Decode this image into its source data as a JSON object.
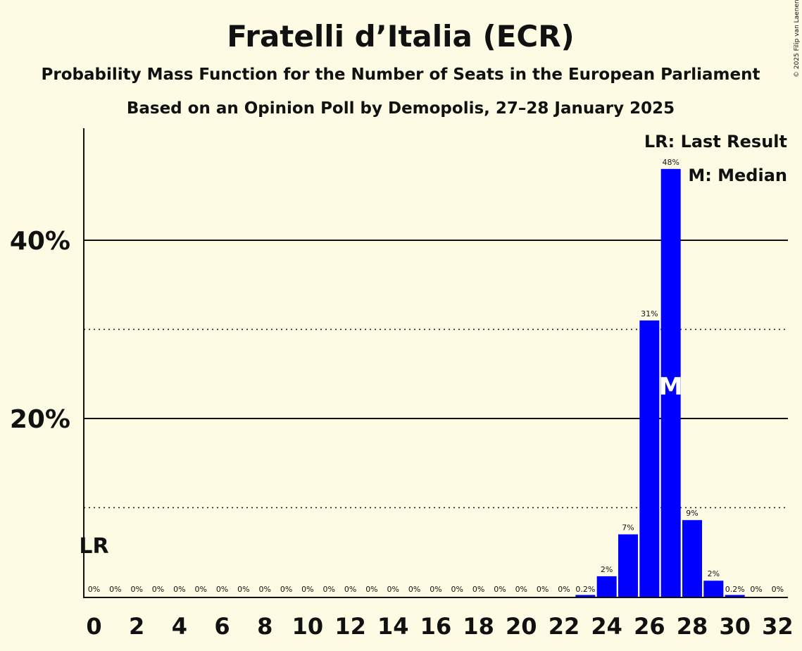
{
  "chart_data": {
    "type": "bar",
    "title": "Fratelli d’Italia (ECR)",
    "subtitle": "Probability Mass Function for the Number of Seats in the European Parliament",
    "subtitle2": "Based on an Opinion Poll by Demopolis, 27–28 January 2025",
    "copyright": "© 2025 Filip van Laenen",
    "x": [
      0,
      1,
      2,
      3,
      4,
      5,
      6,
      7,
      8,
      9,
      10,
      11,
      12,
      13,
      14,
      15,
      16,
      17,
      18,
      19,
      20,
      21,
      22,
      23,
      24,
      25,
      26,
      27,
      28,
      29,
      30,
      31,
      32
    ],
    "values": [
      0,
      0,
      0,
      0,
      0,
      0,
      0,
      0,
      0,
      0,
      0,
      0,
      0,
      0,
      0,
      0,
      0,
      0,
      0,
      0,
      0,
      0,
      0,
      0.2,
      2.3,
      7,
      31,
      48,
      8.6,
      1.8,
      0.2,
      0,
      0
    ],
    "labels": [
      "0%",
      "0%",
      "0%",
      "0%",
      "0%",
      "0%",
      "0%",
      "0%",
      "0%",
      "0%",
      "0%",
      "0%",
      "0%",
      "0%",
      "0%",
      "0%",
      "0%",
      "0%",
      "0%",
      "0%",
      "0%",
      "0%",
      "0%",
      "0.2%",
      "2%",
      "7%",
      "31%",
      "48%",
      "9%",
      "2%",
      "0.2%",
      "0%",
      "0%"
    ],
    "xticks": [
      "0",
      "2",
      "4",
      "6",
      "8",
      "10",
      "12",
      "14",
      "16",
      "18",
      "20",
      "22",
      "24",
      "26",
      "28",
      "30",
      "32"
    ],
    "yticks": [
      {
        "value": 20,
        "label": "20%"
      },
      {
        "value": 40,
        "label": "40%"
      }
    ],
    "minor_gridlines": [
      10,
      30
    ],
    "ylim": [
      0,
      52
    ],
    "last_result": {
      "x": 0,
      "label": "LR"
    },
    "median": {
      "x": 27,
      "label": "M"
    },
    "legend": {
      "lr": "LR: Last Result",
      "m": "M: Median",
      "placement": "top-right"
    },
    "bar_color": "#0000ff"
  }
}
